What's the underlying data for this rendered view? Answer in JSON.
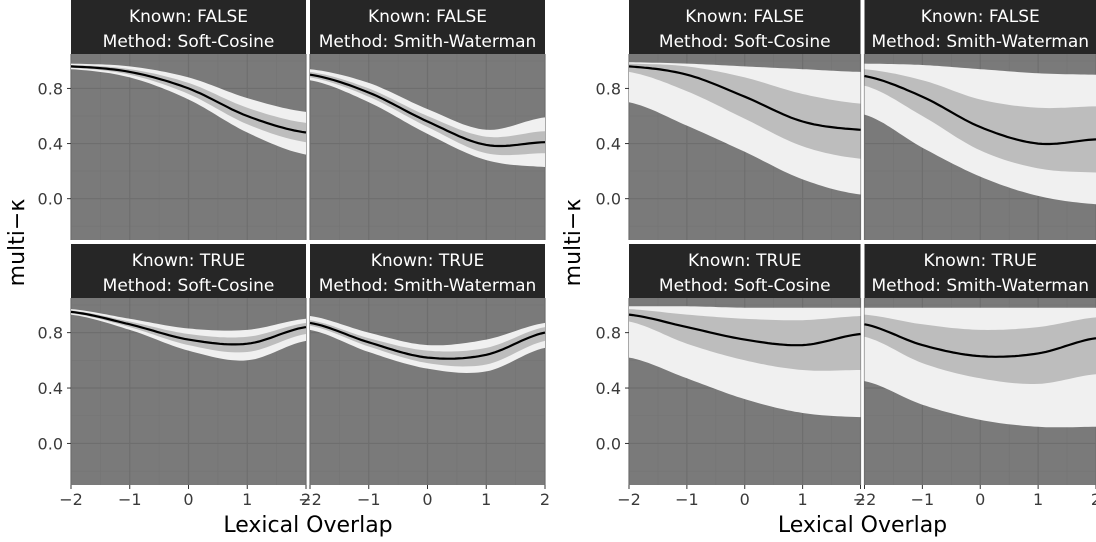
{
  "colors": {
    "panel_bg": "#7a7a7a",
    "strip_bg": "#262626",
    "strip_text": "#ffffff",
    "grid_major": "#6e6e6e",
    "grid_minor": "#747474",
    "band_outer": "#f0f0f0",
    "band_inner": "#bdbdbd",
    "line": "#000000"
  },
  "chart_data": [
    {
      "type": "line",
      "xlabel": "Lexical Overlap",
      "ylabel": "multi-κ",
      "xlim": [
        -2,
        2
      ],
      "ylim": [
        -0.3,
        1.05
      ],
      "x_ticks": [
        "-2",
        "-1",
        "0",
        "1",
        "2"
      ],
      "y_ticks": [
        "0.0",
        "0.4",
        "0.8"
      ],
      "x": [
        -2,
        -1,
        0,
        1,
        2
      ],
      "facets": [
        {
          "strip": [
            "Known: FALSE",
            "Method: Soft-Cosine"
          ],
          "fit": [
            0.96,
            0.92,
            0.8,
            0.6,
            0.48
          ],
          "inner_band": {
            "lower": [
              0.95,
              0.9,
              0.76,
              0.54,
              0.41
            ],
            "upper": [
              0.97,
              0.94,
              0.84,
              0.66,
              0.55
            ]
          },
          "outer_band": {
            "lower": [
              0.94,
              0.88,
              0.72,
              0.48,
              0.32
            ],
            "upper": [
              0.98,
              0.96,
              0.88,
              0.73,
              0.63
            ]
          }
        },
        {
          "strip": [
            "Known: FALSE",
            "Method: Smith-Waterman"
          ],
          "fit": [
            0.9,
            0.77,
            0.56,
            0.39,
            0.41
          ],
          "inner_band": {
            "lower": [
              0.88,
              0.74,
              0.52,
              0.33,
              0.33
            ],
            "upper": [
              0.92,
              0.8,
              0.6,
              0.45,
              0.49
            ]
          },
          "outer_band": {
            "lower": [
              0.86,
              0.7,
              0.47,
              0.28,
              0.23
            ],
            "upper": [
              0.94,
              0.84,
              0.65,
              0.5,
              0.59
            ]
          }
        },
        {
          "strip": [
            "Known: TRUE",
            "Method: Soft-Cosine"
          ],
          "fit": [
            0.95,
            0.86,
            0.75,
            0.72,
            0.84
          ],
          "inner_band": {
            "lower": [
              0.94,
              0.84,
              0.71,
              0.66,
              0.79
            ],
            "upper": [
              0.96,
              0.88,
              0.79,
              0.77,
              0.87
            ]
          },
          "outer_band": {
            "lower": [
              0.93,
              0.82,
              0.67,
              0.6,
              0.74
            ],
            "upper": [
              0.97,
              0.9,
              0.83,
              0.82,
              0.9
            ]
          }
        },
        {
          "strip": [
            "Known: TRUE",
            "Method: Smith-Waterman"
          ],
          "fit": [
            0.87,
            0.73,
            0.62,
            0.64,
            0.8
          ],
          "inner_band": {
            "lower": [
              0.85,
              0.7,
              0.58,
              0.57,
              0.74
            ],
            "upper": [
              0.89,
              0.76,
              0.67,
              0.69,
              0.84
            ]
          },
          "outer_band": {
            "lower": [
              0.82,
              0.66,
              0.54,
              0.52,
              0.69
            ],
            "upper": [
              0.92,
              0.8,
              0.71,
              0.75,
              0.87
            ]
          }
        }
      ]
    },
    {
      "type": "line",
      "xlabel": "Lexical Overlap",
      "ylabel": "multi-κ",
      "xlim": [
        -2,
        2
      ],
      "ylim": [
        -0.3,
        1.05
      ],
      "x_ticks": [
        "-2",
        "-1",
        "0",
        "1",
        "2"
      ],
      "y_ticks": [
        "0.0",
        "0.4",
        "0.8"
      ],
      "x": [
        -2,
        -1,
        0,
        1,
        2
      ],
      "facets": [
        {
          "strip": [
            "Known: FALSE",
            "Method: Soft-Cosine"
          ],
          "fit": [
            0.96,
            0.9,
            0.74,
            0.56,
            0.5
          ],
          "inner_band": {
            "lower": [
              0.92,
              0.78,
              0.58,
              0.38,
              0.29
            ],
            "upper": [
              0.98,
              0.96,
              0.88,
              0.76,
              0.69
            ]
          },
          "outer_band": {
            "lower": [
              0.7,
              0.53,
              0.34,
              0.14,
              0.03
            ],
            "upper": [
              0.99,
              0.98,
              0.96,
              0.94,
              0.92
            ]
          }
        },
        {
          "strip": [
            "Known: FALSE",
            "Method: Smith-Waterman"
          ],
          "fit": [
            0.89,
            0.74,
            0.52,
            0.4,
            0.43
          ],
          "inner_band": {
            "lower": [
              0.82,
              0.6,
              0.35,
              0.22,
              0.19
            ],
            "upper": [
              0.94,
              0.86,
              0.72,
              0.66,
              0.67
            ]
          },
          "outer_band": {
            "lower": [
              0.61,
              0.37,
              0.16,
              0.02,
              -0.04
            ],
            "upper": [
              0.98,
              0.97,
              0.94,
              0.91,
              0.9
            ]
          }
        },
        {
          "strip": [
            "Known: TRUE",
            "Method: Soft-Cosine"
          ],
          "fit": [
            0.93,
            0.84,
            0.75,
            0.71,
            0.79
          ],
          "inner_band": {
            "lower": [
              0.88,
              0.72,
              0.6,
              0.53,
              0.53
            ],
            "upper": [
              0.97,
              0.93,
              0.9,
              0.89,
              0.92
            ]
          },
          "outer_band": {
            "lower": [
              0.62,
              0.47,
              0.32,
              0.22,
              0.19
            ],
            "upper": [
              0.99,
              0.99,
              0.98,
              0.98,
              0.98
            ]
          }
        },
        {
          "strip": [
            "Known: TRUE",
            "Method: Smith-Waterman"
          ],
          "fit": [
            0.86,
            0.71,
            0.63,
            0.65,
            0.76
          ],
          "inner_band": {
            "lower": [
              0.77,
              0.58,
              0.47,
              0.43,
              0.5
            ],
            "upper": [
              0.93,
              0.86,
              0.82,
              0.84,
              0.91
            ]
          },
          "outer_band": {
            "lower": [
              0.45,
              0.28,
              0.17,
              0.12,
              0.12
            ],
            "upper": [
              0.98,
              0.98,
              0.98,
              0.98,
              0.98
            ]
          }
        }
      ]
    }
  ]
}
